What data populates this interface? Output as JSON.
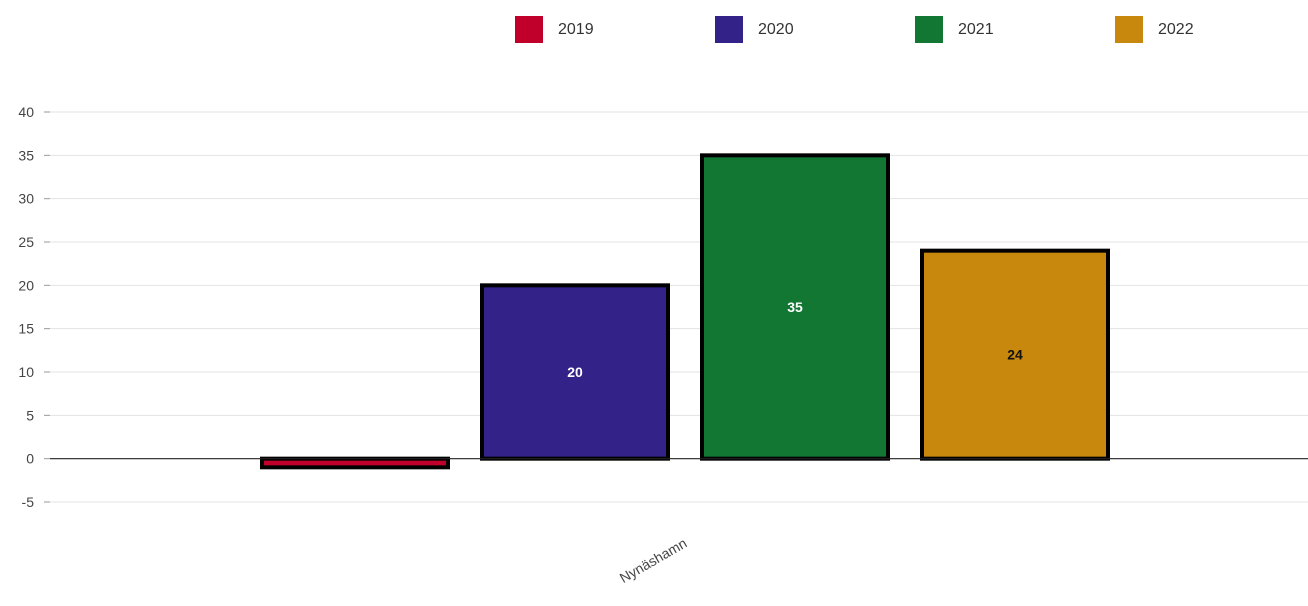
{
  "chart_data": {
    "type": "bar",
    "categories": [
      "Nynäshamn"
    ],
    "series": [
      {
        "name": "2019",
        "color": "#c0002a",
        "values": [
          -1
        ],
        "data_label": ""
      },
      {
        "name": "2020",
        "color": "#332288",
        "values": [
          20
        ],
        "data_label": "20"
      },
      {
        "name": "2021",
        "color": "#117733",
        "values": [
          35
        ],
        "data_label": "35"
      },
      {
        "name": "2022",
        "color": "#c8880d",
        "values": [
          24
        ],
        "data_label": "24"
      }
    ],
    "title": "",
    "xlabel": "",
    "ylabel": "",
    "ylim": [
      -5,
      40
    ],
    "yticks": [
      40,
      35,
      30,
      25,
      20,
      15,
      10,
      5,
      0,
      -5
    ],
    "ytick_labels": [
      "40",
      "35",
      "30",
      "25",
      "20",
      "15",
      "10",
      "5",
      "0",
      "-5"
    ],
    "grid": true,
    "legend_position": "top",
    "label_colors": {
      "2019": "#ffffff",
      "2020": "#ffffff",
      "2021": "#ffffff",
      "2022": "#111111"
    }
  }
}
